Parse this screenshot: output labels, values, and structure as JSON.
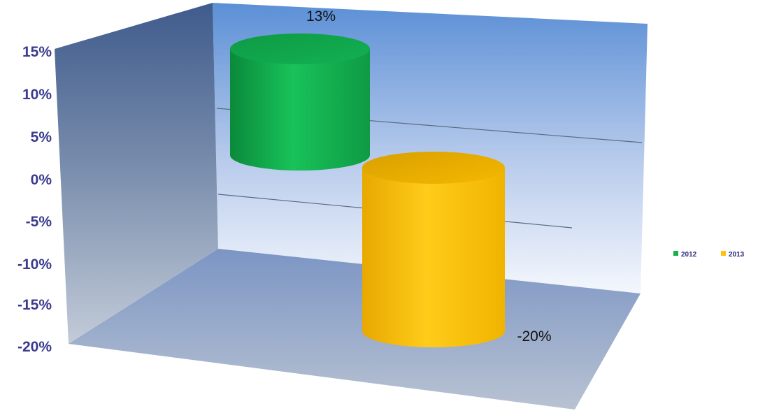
{
  "chart_data": {
    "type": "bar",
    "style": "3d-cylinder",
    "series": [
      {
        "name": "2012",
        "value": 13,
        "label": "13%",
        "color": "#16b04c"
      },
      {
        "name": "2013",
        "value": -20,
        "label": "-20%",
        "color": "#ffc20e"
      }
    ],
    "ylim": [
      -20,
      15
    ],
    "yticks": [
      "15%",
      "10%",
      "5%",
      "0%",
      "-5%",
      "-10%",
      "-15%",
      "-20%"
    ],
    "ytick_values": [
      15,
      10,
      5,
      0,
      -5,
      -10,
      -15,
      -20
    ],
    "legend_position": "right",
    "grid": true,
    "colors": {
      "back_wall_top": "#5b8fd6",
      "side_wall": "#46608e",
      "floor": "#9fb0cc",
      "axis_text": "#3b3b8f"
    }
  }
}
